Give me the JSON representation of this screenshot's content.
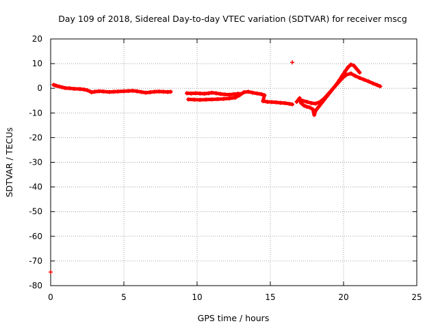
{
  "chart_data": {
    "type": "scatter",
    "title": "Day 109 of 2018, Sidereal Day-to-day VTEC variation (SDTVAR) for receiver mscg",
    "xlabel": "GPS time / hours",
    "ylabel": "SDTVAR / TECUs",
    "xlim": [
      0,
      25
    ],
    "ylim": [
      -80,
      20
    ],
    "xticks": [
      0,
      5,
      10,
      15,
      20,
      25
    ],
    "yticks": [
      20,
      10,
      0,
      -10,
      -20,
      -30,
      -40,
      -50,
      -60,
      -70,
      -80
    ],
    "grid": true,
    "marker_color": "#ff0000",
    "series": [
      {
        "name": "SDTVAR",
        "x": [
          0.0,
          0.2,
          0.3,
          0.4,
          0.6,
          0.8,
          1.0,
          1.3,
          1.6,
          2.0,
          2.3,
          2.5,
          2.7,
          2.8,
          3.0,
          3.3,
          3.6,
          4.0,
          4.3,
          4.6,
          5.0,
          5.3,
          5.6,
          5.9,
          6.2,
          6.5,
          6.8,
          7.1,
          7.4,
          7.7,
          8.0,
          8.2,
          9.3,
          9.6,
          9.9,
          10.2,
          10.5,
          10.8,
          11.0,
          11.3,
          11.6,
          11.9,
          12.2,
          12.5,
          12.8,
          13.0,
          9.4,
          9.8,
          10.2,
          10.6,
          11.0,
          11.4,
          11.8,
          12.2,
          12.6,
          12.9,
          13.2,
          13.5,
          13.8,
          14.1,
          14.4,
          14.6,
          14.5,
          14.8,
          15.1,
          15.4,
          15.7,
          16.0,
          16.3,
          16.5,
          16.5,
          16.8,
          17.0,
          17.1,
          17.3,
          17.5,
          17.7,
          17.9,
          18.0,
          18.1,
          18.3,
          18.5,
          18.7,
          18.9,
          19.1,
          19.3,
          19.5,
          19.7,
          19.9,
          20.1,
          20.3,
          20.5,
          20.7,
          20.9,
          21.1,
          17.2,
          17.5,
          17.8,
          18.1,
          18.4,
          18.7,
          19.0,
          19.3,
          19.6,
          19.9,
          20.2,
          20.5,
          20.8,
          21.1,
          21.4,
          21.7,
          22.0,
          22.3,
          22.5
        ],
        "y": [
          -74.5,
          1.4,
          1.2,
          1.0,
          0.7,
          0.4,
          0.1,
          0.0,
          -0.2,
          -0.3,
          -0.5,
          -0.8,
          -1.3,
          -1.6,
          -1.4,
          -1.2,
          -1.3,
          -1.5,
          -1.4,
          -1.3,
          -1.2,
          -1.1,
          -1.0,
          -1.2,
          -1.5,
          -1.8,
          -1.6,
          -1.4,
          -1.3,
          -1.4,
          -1.5,
          -1.4,
          -2.0,
          -2.1,
          -2.0,
          -2.1,
          -2.2,
          -2.0,
          -1.8,
          -2.0,
          -2.3,
          -2.5,
          -2.6,
          -2.4,
          -2.2,
          -2.3,
          -4.5,
          -4.6,
          -4.7,
          -4.6,
          -4.5,
          -4.4,
          -4.3,
          -4.1,
          -3.8,
          -2.8,
          -1.6,
          -1.4,
          -1.8,
          -2.1,
          -2.4,
          -2.8,
          -5.2,
          -5.5,
          -5.6,
          -5.7,
          -5.9,
          -6.0,
          -6.3,
          -6.5,
          10.5,
          -5.5,
          -4.0,
          -6.0,
          -7.0,
          -7.5,
          -7.8,
          -8.5,
          -10.8,
          -9.0,
          -7.5,
          -6.0,
          -4.5,
          -3.0,
          -1.5,
          0.0,
          1.5,
          3.2,
          5.0,
          6.8,
          8.5,
          9.6,
          9.2,
          7.8,
          6.4,
          -5.0,
          -5.5,
          -6.0,
          -6.2,
          -5.5,
          -4.0,
          -2.0,
          0.0,
          2.0,
          4.0,
          5.5,
          6.0,
          5.0,
          4.2,
          3.5,
          2.8,
          2.0,
          1.3,
          0.8
        ]
      }
    ]
  }
}
